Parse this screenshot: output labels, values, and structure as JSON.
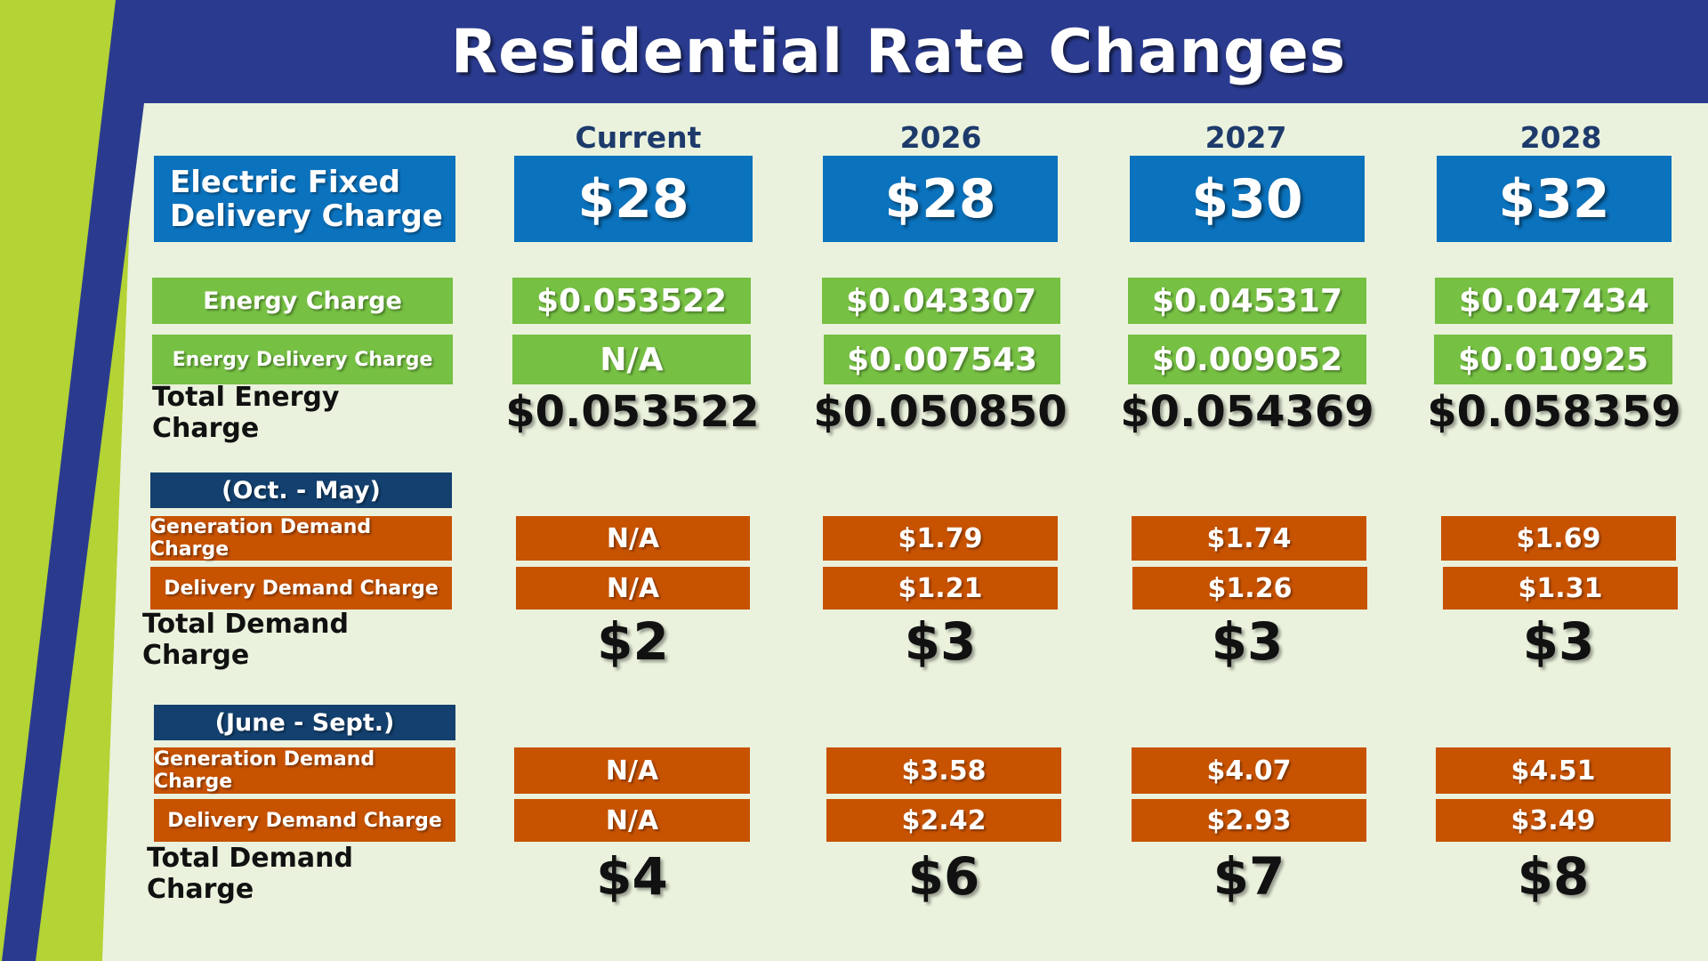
{
  "title": "Residential Rate Changes",
  "columns": [
    "Current",
    "2026",
    "2027",
    "2028"
  ],
  "fixed": {
    "label_line1": "Electric Fixed",
    "label_line2": "Delivery Charge",
    "values": [
      "$28",
      "$28",
      "$30",
      "$32"
    ]
  },
  "energy": {
    "charge_label": "Energy Charge",
    "charge_values": [
      "$0.053522",
      "$0.043307",
      "$0.045317",
      "$0.047434"
    ],
    "delivery_label": "Energy Delivery Charge",
    "delivery_values": [
      "N/A",
      "$0.007543",
      "$0.009052",
      "$0.010925"
    ],
    "total_label": "Total Energy Charge",
    "total_values": [
      "$0.053522",
      "$0.050850",
      "$0.054369",
      "$0.058359"
    ]
  },
  "winter": {
    "period": "(Oct. - May)",
    "generation_label": "Generation Demand Charge",
    "generation_values": [
      "N/A",
      "$1.79",
      "$1.74",
      "$1.69"
    ],
    "delivery_label": "Delivery Demand Charge",
    "delivery_values": [
      "N/A",
      "$1.21",
      "$1.26",
      "$1.31"
    ],
    "total_label": "Total Demand Charge",
    "total_values": [
      "$2",
      "$3",
      "$3",
      "$3"
    ]
  },
  "summer": {
    "period": "(June - Sept.)",
    "generation_label": "Generation Demand Charge",
    "generation_values": [
      "N/A",
      "$3.58",
      "$4.07",
      "$4.51"
    ],
    "delivery_label": "Delivery Demand Charge",
    "delivery_values": [
      "N/A",
      "$2.42",
      "$2.93",
      "$3.49"
    ],
    "total_label": "Total Demand Charge",
    "total_values": [
      "$4",
      "$6",
      "$7",
      "$8"
    ]
  },
  "colors": {
    "banner": "#2a3b8f",
    "blue_cell": "#0b72bd",
    "green_cell": "#76c043",
    "orange_cell": "#c75200",
    "navy_cell": "#13406e",
    "lime_stripe": "#b4d334",
    "background": "#eaf2dd"
  }
}
